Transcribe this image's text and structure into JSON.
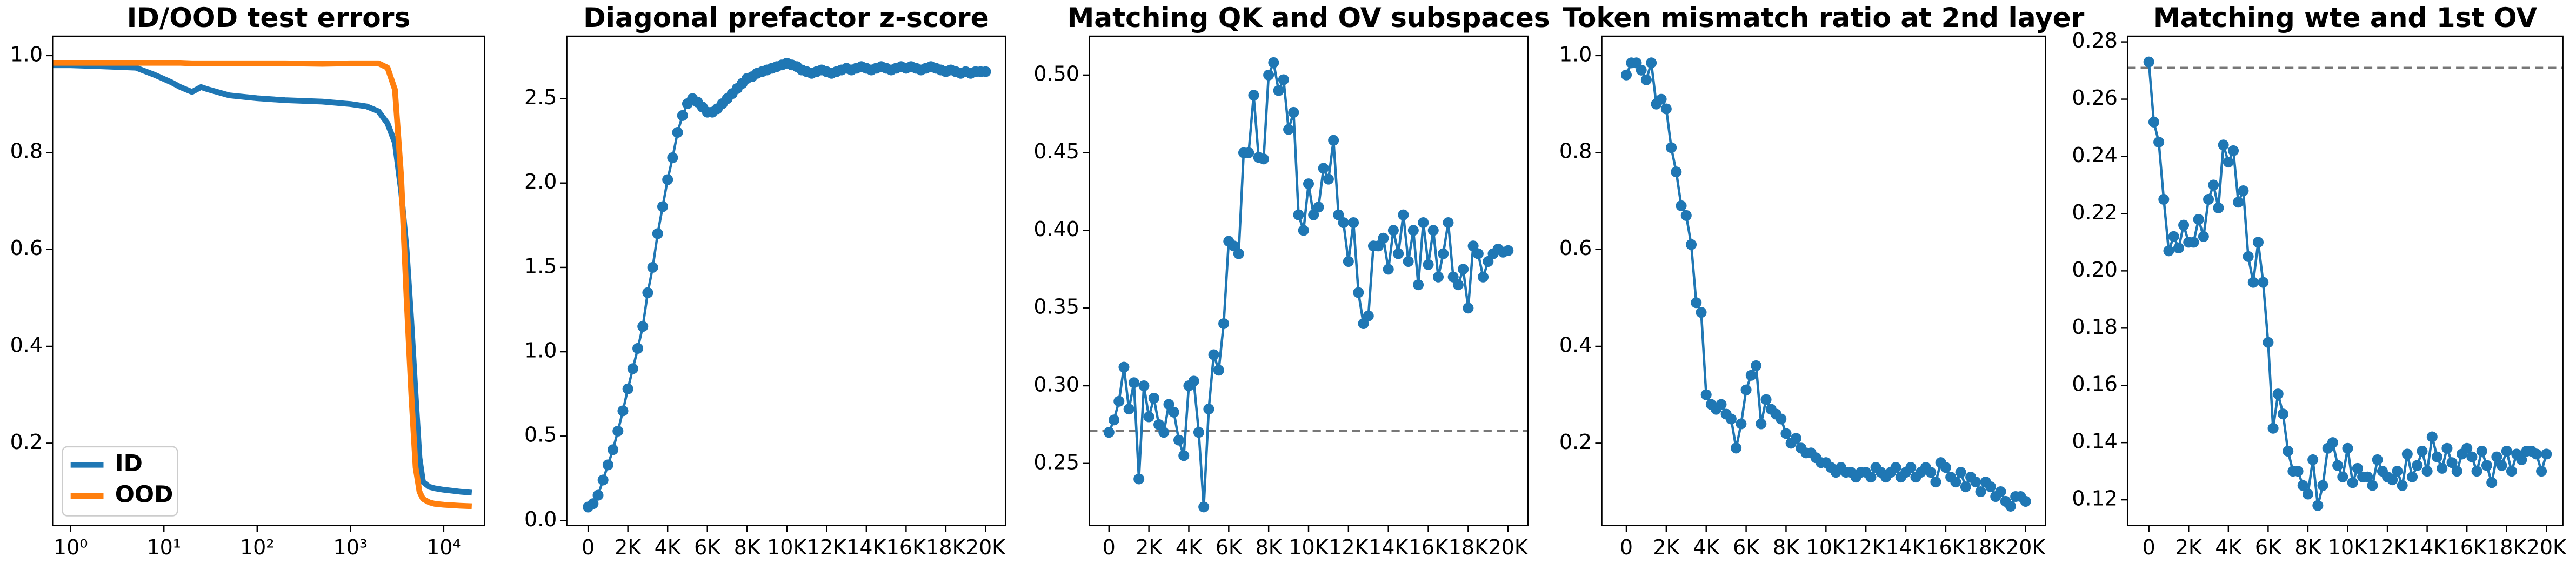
{
  "chart_data": [
    {
      "type": "line",
      "title": "ID/OOD test errors",
      "xscale": "log",
      "x": [
        0.64,
        1,
        2,
        5,
        8,
        12,
        15,
        20,
        25,
        30,
        50,
        100,
        200,
        500,
        1000,
        1500,
        2000,
        2500,
        3000,
        3500,
        4000,
        4500,
        5000,
        5500,
        6000,
        7000,
        8000,
        10000,
        15000,
        20000
      ],
      "series": [
        {
          "name": "ID",
          "color": "#1f77b4",
          "values": [
            0.98,
            0.98,
            0.978,
            0.975,
            0.96,
            0.945,
            0.935,
            0.925,
            0.935,
            0.93,
            0.918,
            0.912,
            0.908,
            0.905,
            0.9,
            0.895,
            0.885,
            0.86,
            0.82,
            0.72,
            0.6,
            0.45,
            0.3,
            0.17,
            0.12,
            0.11,
            0.107,
            0.104,
            0.1,
            0.098
          ]
        },
        {
          "name": "OOD",
          "color": "#ff7f0e",
          "values": [
            0.985,
            0.985,
            0.985,
            0.985,
            0.985,
            0.985,
            0.985,
            0.984,
            0.984,
            0.984,
            0.984,
            0.984,
            0.984,
            0.983,
            0.984,
            0.984,
            0.984,
            0.975,
            0.93,
            0.75,
            0.5,
            0.3,
            0.15,
            0.1,
            0.085,
            0.078,
            0.075,
            0.073,
            0.071,
            0.07
          ]
        }
      ],
      "xlim": [
        0.64,
        27500
      ],
      "xticks": [
        {
          "value": 1,
          "label": "10⁰"
        },
        {
          "value": 10,
          "label": "10¹"
        },
        {
          "value": 100,
          "label": "10²"
        },
        {
          "value": 1000,
          "label": "10³"
        },
        {
          "value": 10000,
          "label": "10⁴"
        }
      ],
      "ylim": [
        0.03,
        1.04
      ],
      "yticks": [
        0.2,
        0.4,
        0.6,
        0.8,
        {
          "value": 1,
          "label": "1.0"
        }
      ],
      "legend": "lower left"
    },
    {
      "type": "line",
      "title": "Diagonal prefactor z-score",
      "color": "#1f77b4",
      "markers": true,
      "x": [
        0,
        250,
        500,
        750,
        1000,
        1250,
        1500,
        1750,
        2000,
        2250,
        2500,
        2750,
        3000,
        3250,
        3500,
        3750,
        4000,
        4250,
        4500,
        4750,
        5000,
        5250,
        5500,
        5750,
        6000,
        6250,
        6500,
        6750,
        7000,
        7250,
        7500,
        7750,
        8000,
        8250,
        8500,
        8750,
        9000,
        9250,
        9500,
        9750,
        10000,
        10250,
        10500,
        10750,
        11000,
        11250,
        11500,
        11750,
        12000,
        12250,
        12500,
        12750,
        13000,
        13250,
        13500,
        13750,
        14000,
        14250,
        14500,
        14750,
        15000,
        15250,
        15500,
        15750,
        16000,
        16250,
        16500,
        16750,
        17000,
        17250,
        17500,
        17750,
        18000,
        18250,
        18500,
        18750,
        19000,
        19250,
        19500,
        19750,
        20000
      ],
      "values": [
        0.08,
        0.1,
        0.15,
        0.24,
        0.33,
        0.42,
        0.53,
        0.65,
        0.78,
        0.9,
        1.02,
        1.15,
        1.35,
        1.5,
        1.7,
        1.86,
        2.02,
        2.15,
        2.3,
        2.4,
        2.47,
        2.5,
        2.48,
        2.45,
        2.42,
        2.42,
        2.44,
        2.47,
        2.5,
        2.53,
        2.56,
        2.59,
        2.62,
        2.63,
        2.65,
        2.66,
        2.67,
        2.68,
        2.69,
        2.7,
        2.71,
        2.7,
        2.69,
        2.67,
        2.66,
        2.65,
        2.66,
        2.67,
        2.66,
        2.65,
        2.66,
        2.67,
        2.68,
        2.67,
        2.68,
        2.69,
        2.68,
        2.67,
        2.68,
        2.69,
        2.68,
        2.67,
        2.68,
        2.69,
        2.68,
        2.69,
        2.68,
        2.67,
        2.68,
        2.69,
        2.68,
        2.67,
        2.66,
        2.67,
        2.66,
        2.65,
        2.66,
        2.65,
        2.66,
        2.66,
        2.66
      ],
      "xlim": [
        -1074,
        21000
      ],
      "xticks": [
        0,
        {
          "value": 2000,
          "label": "2K"
        },
        {
          "value": 4000,
          "label": "4K"
        },
        {
          "value": 6000,
          "label": "6K"
        },
        {
          "value": 8000,
          "label": "8K"
        },
        {
          "value": 10000,
          "label": "10K"
        },
        {
          "value": 12000,
          "label": "12K"
        },
        {
          "value": 14000,
          "label": "14K"
        },
        {
          "value": 16000,
          "label": "16K"
        },
        {
          "value": 18000,
          "label": "18K"
        },
        {
          "value": 20000,
          "label": "20K"
        }
      ],
      "ylim": [
        -0.03,
        2.87
      ],
      "yticks": [
        {
          "value": 0,
          "label": "0.0"
        },
        0.5,
        {
          "value": 1,
          "label": "1.0"
        },
        1.5,
        {
          "value": 2,
          "label": "2.0"
        },
        2.5
      ]
    },
    {
      "type": "line",
      "title": "Matching QK and OV subspaces",
      "color": "#1f77b4",
      "markers": true,
      "hline": 0.271,
      "x": [
        0,
        250,
        500,
        750,
        1000,
        1250,
        1500,
        1750,
        2000,
        2250,
        2500,
        2750,
        3000,
        3250,
        3500,
        3750,
        4000,
        4250,
        4500,
        4750,
        5000,
        5250,
        5500,
        5750,
        6000,
        6250,
        6500,
        6750,
        7000,
        7250,
        7500,
        7750,
        8000,
        8250,
        8500,
        8750,
        9000,
        9250,
        9500,
        9750,
        10000,
        10250,
        10500,
        10750,
        11000,
        11250,
        11500,
        11750,
        12000,
        12250,
        12500,
        12750,
        13000,
        13250,
        13500,
        13750,
        14000,
        14250,
        14500,
        14750,
        15000,
        15250,
        15500,
        15750,
        16000,
        16250,
        16500,
        16750,
        17000,
        17250,
        17500,
        17750,
        18000,
        18250,
        18500,
        18750,
        19000,
        19250,
        19500,
        19750,
        20000
      ],
      "values": [
        0.27,
        0.278,
        0.29,
        0.312,
        0.285,
        0.302,
        0.24,
        0.3,
        0.28,
        0.292,
        0.275,
        0.27,
        0.288,
        0.283,
        0.265,
        0.255,
        0.3,
        0.303,
        0.27,
        0.222,
        0.285,
        0.32,
        0.31,
        0.34,
        0.393,
        0.39,
        0.385,
        0.45,
        0.45,
        0.487,
        0.447,
        0.446,
        0.5,
        0.508,
        0.49,
        0.497,
        0.465,
        0.476,
        0.41,
        0.4,
        0.43,
        0.41,
        0.415,
        0.44,
        0.433,
        0.458,
        0.41,
        0.405,
        0.38,
        0.405,
        0.36,
        0.34,
        0.345,
        0.39,
        0.39,
        0.395,
        0.375,
        0.4,
        0.385,
        0.41,
        0.38,
        0.4,
        0.365,
        0.405,
        0.378,
        0.4,
        0.37,
        0.385,
        0.405,
        0.37,
        0.365,
        0.375,
        0.35,
        0.39,
        0.385,
        0.37,
        0.38,
        0.385,
        0.388,
        0.386,
        0.387
      ],
      "xlim": [
        -990,
        20990
      ],
      "xticks": [
        0,
        {
          "value": 2000,
          "label": "2K"
        },
        {
          "value": 4000,
          "label": "4K"
        },
        {
          "value": 6000,
          "label": "6K"
        },
        {
          "value": 8000,
          "label": "8K"
        },
        {
          "value": 10000,
          "label": "10K"
        },
        {
          "value": 12000,
          "label": "12K"
        },
        {
          "value": 14000,
          "label": "14K"
        },
        {
          "value": 16000,
          "label": "16K"
        },
        {
          "value": 18000,
          "label": "18K"
        },
        {
          "value": 20000,
          "label": "20K"
        }
      ],
      "ylim": [
        0.21,
        0.525
      ],
      "yticks": [
        0.25,
        {
          "value": 0.3,
          "label": "0.30"
        },
        0.35,
        {
          "value": 0.4,
          "label": "0.40"
        },
        0.45,
        {
          "value": 0.5,
          "label": "0.50"
        }
      ]
    },
    {
      "type": "line",
      "title": "Token mismatch ratio at 2nd layer",
      "color": "#1f77b4",
      "markers": true,
      "x": [
        0,
        250,
        500,
        750,
        1000,
        1250,
        1500,
        1750,
        2000,
        2250,
        2500,
        2750,
        3000,
        3250,
        3500,
        3750,
        4000,
        4250,
        4500,
        4750,
        5000,
        5250,
        5500,
        5750,
        6000,
        6250,
        6500,
        6750,
        7000,
        7250,
        7500,
        7750,
        8000,
        8250,
        8500,
        8750,
        9000,
        9250,
        9500,
        9750,
        10000,
        10250,
        10500,
        10750,
        11000,
        11250,
        11500,
        11750,
        12000,
        12250,
        12500,
        12750,
        13000,
        13250,
        13500,
        13750,
        14000,
        14250,
        14500,
        14750,
        15000,
        15250,
        15500,
        15750,
        16000,
        16250,
        16500,
        16750,
        17000,
        17250,
        17500,
        17750,
        18000,
        18250,
        18500,
        18750,
        19000,
        19250,
        19500,
        19750,
        20000
      ],
      "values": [
        0.96,
        0.985,
        0.985,
        0.97,
        0.95,
        0.985,
        0.9,
        0.91,
        0.89,
        0.81,
        0.76,
        0.69,
        0.67,
        0.61,
        0.49,
        0.47,
        0.3,
        0.28,
        0.27,
        0.28,
        0.26,
        0.25,
        0.19,
        0.24,
        0.31,
        0.34,
        0.36,
        0.24,
        0.29,
        0.27,
        0.26,
        0.25,
        0.22,
        0.2,
        0.21,
        0.19,
        0.18,
        0.18,
        0.17,
        0.16,
        0.16,
        0.15,
        0.14,
        0.15,
        0.14,
        0.14,
        0.13,
        0.14,
        0.14,
        0.13,
        0.15,
        0.14,
        0.13,
        0.14,
        0.15,
        0.13,
        0.14,
        0.15,
        0.13,
        0.14,
        0.15,
        0.14,
        0.12,
        0.16,
        0.15,
        0.13,
        0.12,
        0.14,
        0.11,
        0.13,
        0.12,
        0.1,
        0.12,
        0.11,
        0.09,
        0.1,
        0.08,
        0.07,
        0.09,
        0.09,
        0.08
      ],
      "xlim": [
        -1230,
        20990
      ],
      "xticks": [
        0,
        {
          "value": 2000,
          "label": "2K"
        },
        {
          "value": 4000,
          "label": "4K"
        },
        {
          "value": 6000,
          "label": "6K"
        },
        {
          "value": 8000,
          "label": "8K"
        },
        {
          "value": 10000,
          "label": "10K"
        },
        {
          "value": 12000,
          "label": "12K"
        },
        {
          "value": 14000,
          "label": "14K"
        },
        {
          "value": 16000,
          "label": "16K"
        },
        {
          "value": 18000,
          "label": "18K"
        },
        {
          "value": 20000,
          "label": "20K"
        }
      ],
      "ylim": [
        0.03,
        1.04
      ],
      "yticks": [
        0.2,
        0.4,
        0.6,
        0.8,
        {
          "value": 1,
          "label": "1.0"
        }
      ]
    },
    {
      "type": "line",
      "title": "Matching wte and 1st OV",
      "color": "#1f77b4",
      "markers": true,
      "hline": 0.271,
      "x": [
        0,
        250,
        500,
        750,
        1000,
        1250,
        1500,
        1750,
        2000,
        2250,
        2500,
        2750,
        3000,
        3250,
        3500,
        3750,
        4000,
        4250,
        4500,
        4750,
        5000,
        5250,
        5500,
        5750,
        6000,
        6250,
        6500,
        6750,
        7000,
        7250,
        7500,
        7750,
        8000,
        8250,
        8500,
        8750,
        9000,
        9250,
        9500,
        9750,
        10000,
        10250,
        10500,
        10750,
        11000,
        11250,
        11500,
        11750,
        12000,
        12250,
        12500,
        12750,
        13000,
        13250,
        13500,
        13750,
        14000,
        14250,
        14500,
        14750,
        15000,
        15250,
        15500,
        15750,
        16000,
        16250,
        16500,
        16750,
        17000,
        17250,
        17500,
        17750,
        18000,
        18250,
        18500,
        18750,
        19000,
        19250,
        19500,
        19750,
        20000
      ],
      "values": [
        0.273,
        0.252,
        0.245,
        0.225,
        0.207,
        0.212,
        0.208,
        0.216,
        0.21,
        0.21,
        0.218,
        0.212,
        0.225,
        0.23,
        0.222,
        0.244,
        0.238,
        0.242,
        0.224,
        0.228,
        0.205,
        0.196,
        0.21,
        0.196,
        0.175,
        0.145,
        0.157,
        0.15,
        0.137,
        0.13,
        0.13,
        0.125,
        0.122,
        0.134,
        0.118,
        0.125,
        0.138,
        0.14,
        0.132,
        0.128,
        0.138,
        0.126,
        0.131,
        0.128,
        0.128,
        0.125,
        0.134,
        0.13,
        0.128,
        0.127,
        0.13,
        0.125,
        0.136,
        0.128,
        0.132,
        0.137,
        0.13,
        0.142,
        0.135,
        0.131,
        0.138,
        0.133,
        0.13,
        0.136,
        0.138,
        0.135,
        0.13,
        0.137,
        0.132,
        0.126,
        0.135,
        0.132,
        0.137,
        0.13,
        0.136,
        0.134,
        0.137,
        0.137,
        0.136,
        0.13,
        0.136
      ],
      "xlim": [
        -1074,
        20826
      ],
      "xticks": [
        0,
        {
          "value": 2000,
          "label": "2K"
        },
        {
          "value": 4000,
          "label": "4K"
        },
        {
          "value": 6000,
          "label": "6K"
        },
        {
          "value": 8000,
          "label": "8K"
        },
        {
          "value": 10000,
          "label": "10K"
        },
        {
          "value": 12000,
          "label": "12K"
        },
        {
          "value": 14000,
          "label": "14K"
        },
        {
          "value": 16000,
          "label": "16K"
        },
        {
          "value": 18000,
          "label": "18K"
        },
        {
          "value": 20000,
          "label": "20K"
        }
      ],
      "ylim": [
        0.111,
        0.282
      ],
      "yticks": [
        0.12,
        0.14,
        0.16,
        0.18,
        {
          "value": 0.2,
          "label": "0.20"
        },
        0.22,
        0.24,
        0.26,
        0.28
      ]
    }
  ]
}
